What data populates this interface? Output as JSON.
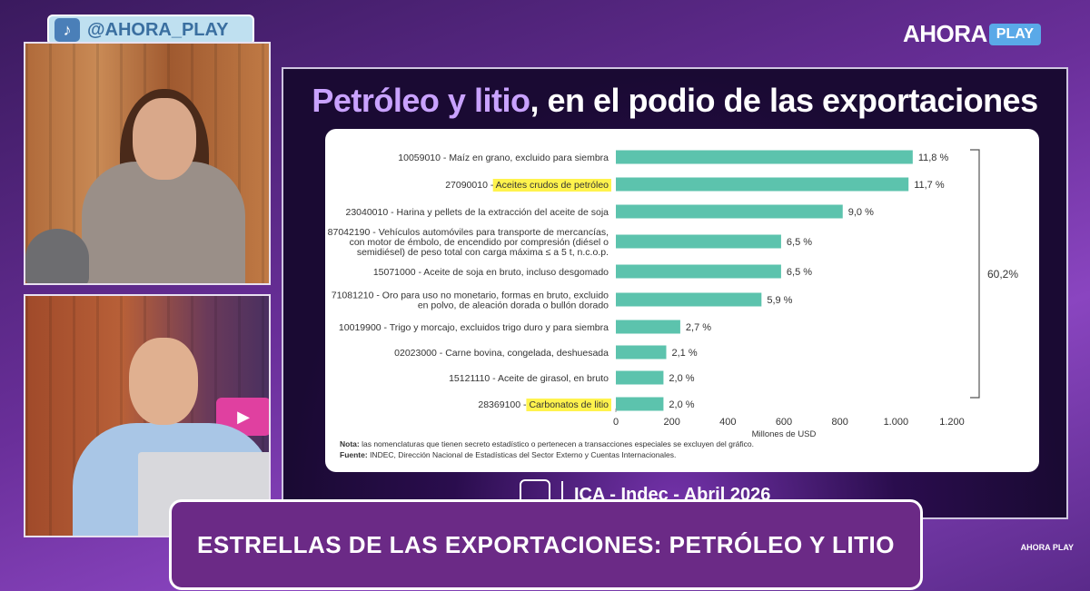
{
  "social_handle": "@AHORA_PLAY",
  "brand": {
    "part1": "AHORA",
    "part2": "PLAY"
  },
  "slide": {
    "title_highlight": "Petróleo y litio",
    "title_rest": ", en el podio de las exportaciones",
    "footer_text": "ICA - Indec - Abril 2026"
  },
  "lower_third": "ESTRELLAS DE LAS EXPORTACIONES: PETRÓLEO Y LITIO",
  "small_brand": "AHORA PLAY",
  "colors": {
    "bar": "#5cc3ad",
    "highlight": "#fff34d",
    "lower_third_bg": "#6b2a86",
    "title_accent": "#c9a2ff"
  },
  "chart_data": {
    "type": "bar",
    "orientation": "horizontal",
    "categories": [
      [
        "10059010 - Maíz en grano, excluido para siembra"
      ],
      [
        "27090010 - Aceites crudos de petróleo"
      ],
      [
        "23040010 - Harina y pellets de la extracción del aceite de soja"
      ],
      [
        "87042190 - Vehículos automóviles para transporte de mercancías,",
        "con motor de émbolo, de encendido por compresión (diésel o",
        "semidiésel) de peso total con carga máxima ≤ a 5 t, n.c.o.p."
      ],
      [
        "15071000 - Aceite de soja en bruto, incluso desgomado"
      ],
      [
        "71081210 - Oro para uso no monetario, formas en bruto, excluido",
        "en polvo, de aleación dorada o bullón dorado"
      ],
      [
        "10019900 - Trigo y morcajo, excluidos trigo duro y para siembra"
      ],
      [
        "02023000 - Carne bovina, congelada, deshuesada"
      ],
      [
        "15121110 - Aceite de girasol, en bruto"
      ],
      [
        "28369100 - Carbonatos de litio"
      ]
    ],
    "highlighted": [
      {
        "index": 1,
        "code": "27090010 - ",
        "text": "Aceites crudos de petróleo"
      },
      {
        "index": 9,
        "code": "28369100 - ",
        "text": "Carbonatos de litio"
      }
    ],
    "values": [
      1060,
      1045,
      810,
      590,
      590,
      520,
      230,
      180,
      170,
      170
    ],
    "data_labels": [
      "11,8 %",
      "11,7 %",
      "9,0 %",
      "6,5 %",
      "6,5 %",
      "5,9 %",
      "2,7 %",
      "2,1 %",
      "2,0 %",
      "2,0 %"
    ],
    "xlabel": "Millones de USD",
    "xlim": [
      0,
      1200
    ],
    "xticks": [
      "0",
      "200",
      "400",
      "600",
      "800",
      "1.000",
      "1.200"
    ],
    "bracket_label": "60,2%",
    "note_label": "Nota:",
    "note_text": " las nomenclaturas que tienen secreto estadístico o pertenecen a transacciones especiales se excluyen del gráfico.",
    "source_label": "Fuente:",
    "source_text": " INDEC, Dirección Nacional de Estadísticas del Sector Externo y Cuentas Internacionales."
  }
}
